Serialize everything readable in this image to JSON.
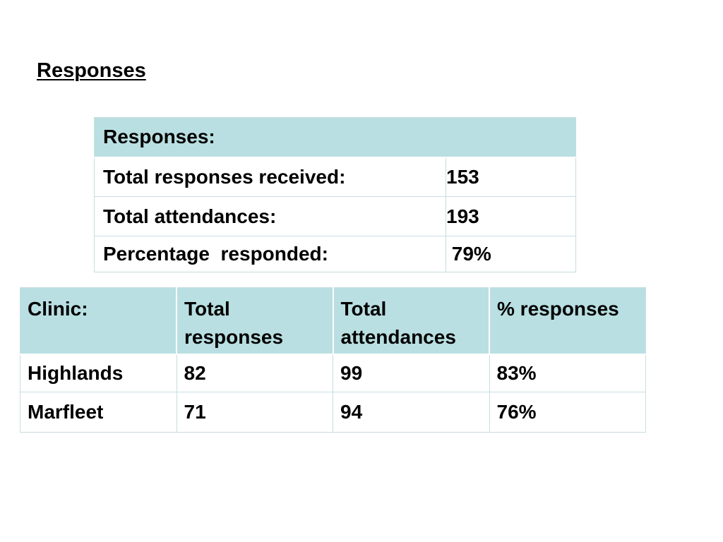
{
  "title": "Responses",
  "summary": {
    "header": "Responses:",
    "rows": [
      {
        "label": "Total responses received:",
        "value": "153"
      },
      {
        "label": "Total attendances:",
        "value": "193"
      },
      {
        "label": "Percentage  responded:",
        "value": " 79%"
      }
    ]
  },
  "clinics": {
    "headers": [
      "Clinic:",
      "Total responses",
      "Total attendances",
      "% responses"
    ],
    "rows": [
      {
        "clinic": "Highlands",
        "total_responses": "82",
        "total_attendances": "99",
        "percent_responses": "83%"
      },
      {
        "clinic": "Marfleet",
        "total_responses": "71",
        "total_attendances": "94",
        "percent_responses": "76%"
      }
    ]
  }
}
